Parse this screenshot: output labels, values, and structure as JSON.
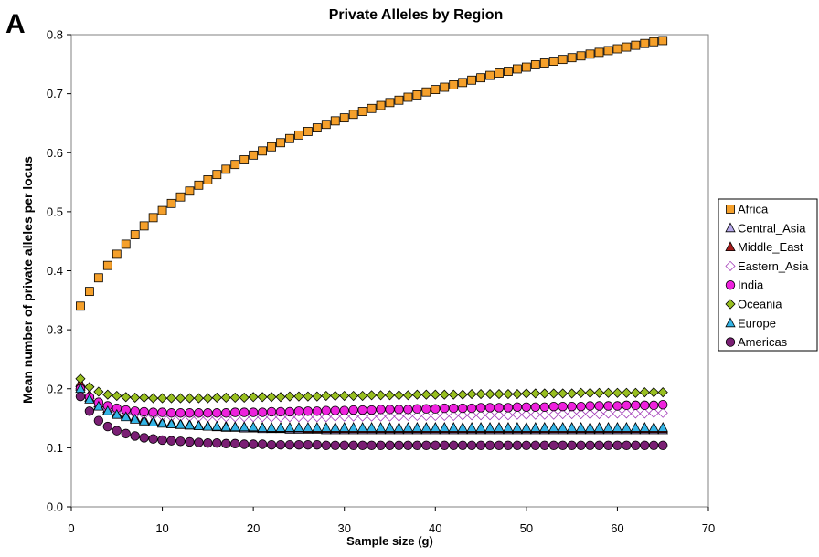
{
  "panel_label": "A",
  "chart_data": {
    "type": "scatter",
    "title": "Private Alleles by Region",
    "xlabel": "Sample size (g)",
    "ylabel": "Mean number of private alleles per locus",
    "xlim": [
      0,
      70
    ],
    "ylim": [
      0,
      0.8
    ],
    "xticks": [
      0,
      10,
      20,
      30,
      40,
      50,
      60,
      70
    ],
    "yticks": [
      0,
      0.1,
      0.2,
      0.3,
      0.4,
      0.5,
      0.6,
      0.7,
      0.8
    ],
    "legend_position": "right",
    "x_range": [
      1,
      65
    ],
    "series": [
      {
        "name": "Africa",
        "marker": "square",
        "color": "#F5A02B",
        "values": [
          0.34,
          0.365,
          0.388,
          0.409,
          0.428,
          0.445,
          0.461,
          0.476,
          0.49,
          0.502,
          0.514,
          0.525,
          0.535,
          0.545,
          0.554,
          0.563,
          0.572,
          0.58,
          0.588,
          0.596,
          0.603,
          0.61,
          0.617,
          0.624,
          0.63,
          0.636,
          0.642,
          0.648,
          0.654,
          0.659,
          0.665,
          0.67,
          0.675,
          0.68,
          0.685,
          0.689,
          0.694,
          0.698,
          0.703,
          0.707,
          0.711,
          0.715,
          0.719,
          0.723,
          0.727,
          0.731,
          0.735,
          0.738,
          0.742,
          0.745,
          0.749,
          0.752,
          0.755,
          0.758,
          0.761,
          0.764,
          0.767,
          0.77,
          0.773,
          0.776,
          0.779,
          0.782,
          0.785,
          0.788,
          0.79
        ]
      },
      {
        "name": "Central_Asia",
        "marker": "triangle",
        "color": "#B7A9EC",
        "values": [
          0.204,
          0.185,
          0.171,
          0.163,
          0.157,
          0.153,
          0.149,
          0.146,
          0.144,
          0.142,
          0.14,
          0.139,
          0.138,
          0.137,
          0.136,
          0.135,
          0.134,
          0.134,
          0.133,
          0.133,
          0.132,
          0.132,
          0.132,
          0.131,
          0.131,
          0.131,
          0.131,
          0.13,
          0.13,
          0.13,
          0.13,
          0.13,
          0.13,
          0.13,
          0.13,
          0.13,
          0.13,
          0.13,
          0.13,
          0.13,
          0.13,
          0.13,
          0.13,
          0.13,
          0.13,
          0.13,
          0.13,
          0.13,
          0.13,
          0.13,
          0.13,
          0.13,
          0.13,
          0.13,
          0.13,
          0.13,
          0.13,
          0.13,
          0.13,
          0.13,
          0.13,
          0.13,
          0.13,
          0.13,
          0.13
        ]
      },
      {
        "name": "Middle_East",
        "marker": "triangle",
        "color": "#A51C1C",
        "values": [
          0.21,
          0.19,
          0.175,
          0.166,
          0.159,
          0.154,
          0.151,
          0.148,
          0.145,
          0.143,
          0.142,
          0.14,
          0.139,
          0.138,
          0.137,
          0.136,
          0.136,
          0.135,
          0.135,
          0.134,
          0.134,
          0.133,
          0.133,
          0.133,
          0.133,
          0.132,
          0.132,
          0.132,
          0.132,
          0.132,
          0.132,
          0.132,
          0.132,
          0.132,
          0.132,
          0.132,
          0.132,
          0.132,
          0.132,
          0.132,
          0.132,
          0.132,
          0.132,
          0.132,
          0.132,
          0.132,
          0.132,
          0.132,
          0.132,
          0.132,
          0.132,
          0.132,
          0.132,
          0.132,
          0.132,
          0.132,
          0.132,
          0.132,
          0.132,
          0.132,
          0.132,
          0.132,
          0.132,
          0.132,
          0.132
        ]
      },
      {
        "name": "Eastern_Asia",
        "marker": "diamond-open",
        "color": "#A23CB8",
        "values": [
          0.2,
          0.184,
          0.173,
          0.166,
          0.162,
          0.159,
          0.157,
          0.156,
          0.155,
          0.154,
          0.153,
          0.153,
          0.153,
          0.152,
          0.152,
          0.152,
          0.152,
          0.152,
          0.152,
          0.152,
          0.152,
          0.152,
          0.152,
          0.152,
          0.152,
          0.152,
          0.152,
          0.152,
          0.153,
          0.153,
          0.153,
          0.153,
          0.153,
          0.153,
          0.153,
          0.153,
          0.154,
          0.154,
          0.154,
          0.154,
          0.154,
          0.154,
          0.155,
          0.155,
          0.155,
          0.155,
          0.155,
          0.155,
          0.156,
          0.156,
          0.156,
          0.156,
          0.156,
          0.157,
          0.157,
          0.157,
          0.157,
          0.157,
          0.158,
          0.158,
          0.158,
          0.158,
          0.158,
          0.159,
          0.159
        ]
      },
      {
        "name": "India",
        "marker": "circle",
        "color": "#EE22DD",
        "values": [
          0.2,
          0.186,
          0.177,
          0.171,
          0.167,
          0.164,
          0.162,
          0.161,
          0.16,
          0.16,
          0.159,
          0.159,
          0.159,
          0.159,
          0.159,
          0.159,
          0.159,
          0.16,
          0.16,
          0.16,
          0.16,
          0.161,
          0.161,
          0.161,
          0.162,
          0.162,
          0.162,
          0.163,
          0.163,
          0.163,
          0.164,
          0.164,
          0.164,
          0.165,
          0.165,
          0.165,
          0.165,
          0.166,
          0.166,
          0.166,
          0.167,
          0.167,
          0.167,
          0.167,
          0.168,
          0.168,
          0.168,
          0.168,
          0.169,
          0.169,
          0.169,
          0.169,
          0.17,
          0.17,
          0.17,
          0.17,
          0.171,
          0.171,
          0.171,
          0.171,
          0.172,
          0.172,
          0.172,
          0.172,
          0.173
        ]
      },
      {
        "name": "Oceania",
        "marker": "diamond",
        "color": "#98BF20",
        "values": [
          0.217,
          0.203,
          0.195,
          0.19,
          0.188,
          0.186,
          0.185,
          0.185,
          0.184,
          0.184,
          0.184,
          0.184,
          0.184,
          0.184,
          0.184,
          0.185,
          0.185,
          0.185,
          0.185,
          0.186,
          0.186,
          0.186,
          0.186,
          0.187,
          0.187,
          0.187,
          0.187,
          0.188,
          0.188,
          0.188,
          0.188,
          0.188,
          0.189,
          0.189,
          0.189,
          0.189,
          0.189,
          0.19,
          0.19,
          0.19,
          0.19,
          0.19,
          0.19,
          0.191,
          0.191,
          0.191,
          0.191,
          0.191,
          0.191,
          0.192,
          0.192,
          0.192,
          0.192,
          0.192,
          0.192,
          0.193,
          0.193,
          0.193,
          0.193,
          0.193,
          0.193,
          0.193,
          0.194,
          0.194,
          0.194
        ]
      },
      {
        "name": "Europe",
        "marker": "triangle",
        "color": "#33B4E6",
        "values": [
          0.2,
          0.182,
          0.17,
          0.162,
          0.156,
          0.152,
          0.148,
          0.145,
          0.143,
          0.141,
          0.14,
          0.139,
          0.138,
          0.137,
          0.136,
          0.136,
          0.135,
          0.135,
          0.135,
          0.135,
          0.134,
          0.134,
          0.134,
          0.134,
          0.134,
          0.134,
          0.134,
          0.134,
          0.134,
          0.134,
          0.134,
          0.134,
          0.134,
          0.134,
          0.134,
          0.134,
          0.134,
          0.134,
          0.134,
          0.134,
          0.134,
          0.134,
          0.134,
          0.134,
          0.134,
          0.134,
          0.134,
          0.134,
          0.134,
          0.134,
          0.134,
          0.134,
          0.134,
          0.134,
          0.134,
          0.134,
          0.134,
          0.134,
          0.134,
          0.134,
          0.134,
          0.134,
          0.134,
          0.134,
          0.134
        ]
      },
      {
        "name": "Americas",
        "marker": "circle",
        "color": "#7A1F74",
        "values": [
          0.187,
          0.162,
          0.146,
          0.136,
          0.129,
          0.124,
          0.12,
          0.117,
          0.115,
          0.113,
          0.112,
          0.111,
          0.11,
          0.109,
          0.108,
          0.108,
          0.107,
          0.107,
          0.106,
          0.106,
          0.106,
          0.105,
          0.105,
          0.105,
          0.105,
          0.105,
          0.105,
          0.104,
          0.104,
          0.104,
          0.104,
          0.104,
          0.104,
          0.104,
          0.104,
          0.104,
          0.104,
          0.104,
          0.104,
          0.104,
          0.104,
          0.104,
          0.104,
          0.104,
          0.104,
          0.104,
          0.104,
          0.104,
          0.104,
          0.104,
          0.104,
          0.104,
          0.104,
          0.104,
          0.104,
          0.104,
          0.104,
          0.104,
          0.104,
          0.104,
          0.104,
          0.104,
          0.104,
          0.104,
          0.104
        ]
      }
    ]
  }
}
